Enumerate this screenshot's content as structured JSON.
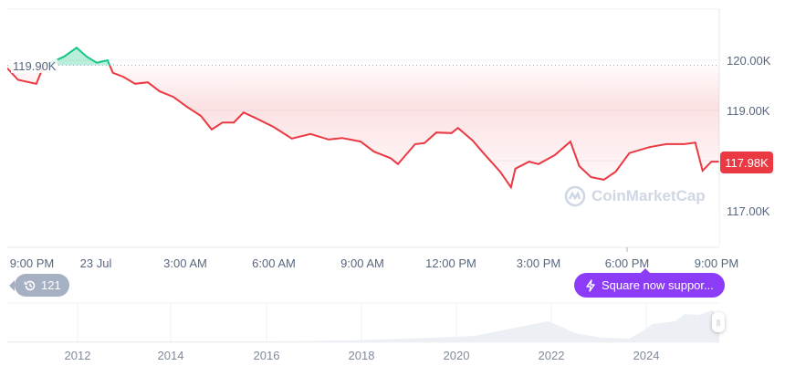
{
  "chart_data": {
    "type": "line",
    "y_unit": "K",
    "ylim": [
      116.7,
      121.0
    ],
    "y_ticks": [
      "120.00K",
      "119.00K",
      "117.00K"
    ],
    "y_tick_values": [
      120,
      119,
      117
    ],
    "x_ticks": [
      "9:00 PM",
      "23 Jul",
      "3:00 AM",
      "6:00 AM",
      "9:00 AM",
      "12:00 PM",
      "3:00 PM",
      "6:00 PM",
      "9:00 PM"
    ],
    "baseline": {
      "value": 119.9,
      "label": "119.90K"
    },
    "current_price": {
      "value": 117.98,
      "label": "117.98K"
    },
    "grid": true,
    "colors": {
      "up": "#16c784",
      "down": "#ea3943",
      "grid": "#eff2f5",
      "volume": "#eef0f4"
    },
    "series": [
      [
        "20:10",
        119.84
      ],
      [
        "20:32",
        119.61
      ],
      [
        "21:09",
        119.53
      ],
      [
        "21:24",
        119.89
      ],
      [
        "22:05",
        120.07
      ],
      [
        "22:31",
        120.25
      ],
      [
        "22:52",
        120.07
      ],
      [
        "23:12",
        119.95
      ],
      [
        "23:34",
        120.0
      ],
      [
        "23:45",
        119.75
      ],
      [
        "00:06",
        119.67
      ],
      [
        "00:30",
        119.53
      ],
      [
        "00:56",
        119.56
      ],
      [
        "01:20",
        119.38
      ],
      [
        "01:48",
        119.27
      ],
      [
        "02:16",
        119.07
      ],
      [
        "02:44",
        118.89
      ],
      [
        "03:06",
        118.62
      ],
      [
        "03:28",
        118.76
      ],
      [
        "03:51",
        118.76
      ],
      [
        "04:11",
        118.96
      ],
      [
        "04:35",
        118.85
      ],
      [
        "05:12",
        118.67
      ],
      [
        "05:49",
        118.44
      ],
      [
        "06:27",
        118.53
      ],
      [
        "07:04",
        118.42
      ],
      [
        "07:31",
        118.45
      ],
      [
        "08:09",
        118.38
      ],
      [
        "08:36",
        118.18
      ],
      [
        "09:10",
        118.05
      ],
      [
        "09:25",
        117.93
      ],
      [
        "10:00",
        118.33
      ],
      [
        "10:19",
        118.35
      ],
      [
        "10:43",
        118.56
      ],
      [
        "11:14",
        118.55
      ],
      [
        "11:27",
        118.65
      ],
      [
        "11:57",
        118.4
      ],
      [
        "12:19",
        118.15
      ],
      [
        "12:53",
        117.78
      ],
      [
        "13:15",
        117.47
      ],
      [
        "13:24",
        117.84
      ],
      [
        "13:52",
        117.98
      ],
      [
        "14:11",
        117.93
      ],
      [
        "14:44",
        118.11
      ],
      [
        "15:16",
        118.38
      ],
      [
        "15:34",
        117.89
      ],
      [
        "15:58",
        117.67
      ],
      [
        "16:24",
        117.62
      ],
      [
        "16:48",
        117.78
      ],
      [
        "17:16",
        118.15
      ],
      [
        "17:57",
        118.27
      ],
      [
        "18:31",
        118.33
      ],
      [
        "19:08",
        118.33
      ],
      [
        "19:30",
        118.36
      ],
      [
        "19:45",
        117.8
      ],
      [
        "20:03",
        117.98
      ],
      [
        "20:18",
        117.98
      ]
    ]
  },
  "navigator": {
    "year_ticks": [
      "2012",
      "2014",
      "2016",
      "2018",
      "2020",
      "2022",
      "2024"
    ]
  },
  "watermark": {
    "text": "CoinMarketCap",
    "icon": "coinmarketcap-logo-icon"
  },
  "history_badge": {
    "icon": "history-icon",
    "count": "121"
  },
  "news_badge": {
    "icon": "lightning-icon",
    "text": "Square now suppor..."
  }
}
